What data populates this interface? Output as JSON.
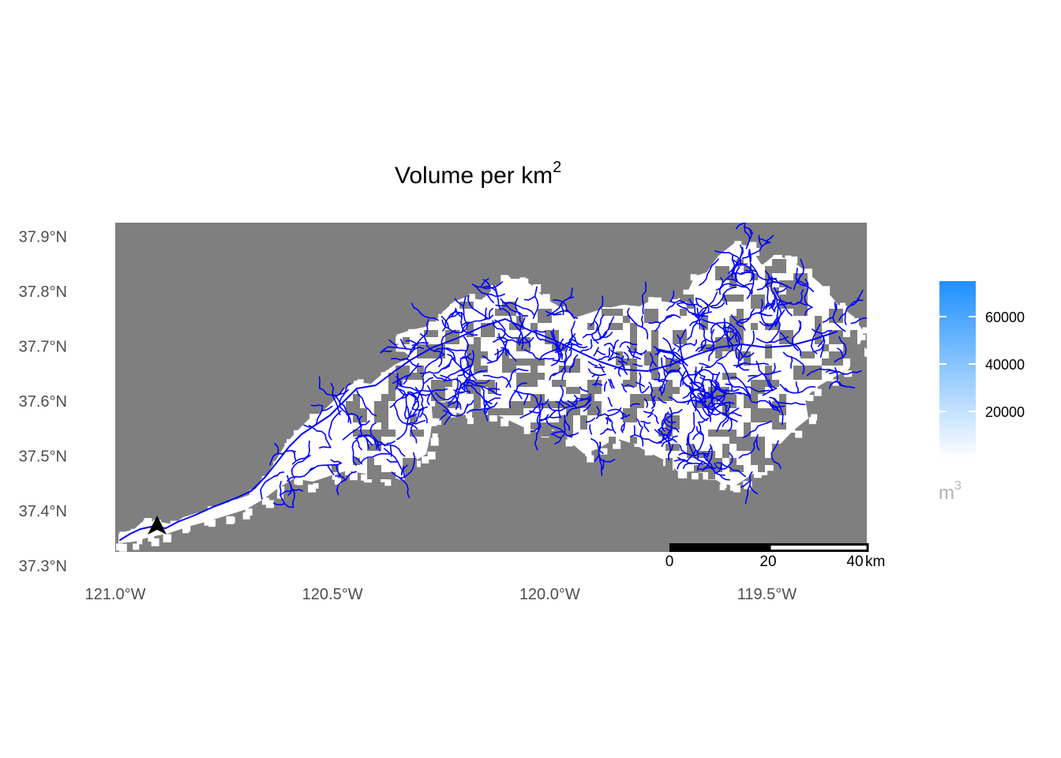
{
  "title": {
    "main": "Volume per km",
    "superscript": "2"
  },
  "colors": {
    "background": "#7f7f7f",
    "watershed": "#ffffff",
    "streams": "#0000ff",
    "legend_low": "#ffffff",
    "legend_high": "#1e90ff",
    "north_arrow": "#000000"
  },
  "map": {
    "lon_range": [
      -121.0,
      -119.27
    ],
    "lat_range": [
      37.325,
      37.925
    ]
  },
  "axes": {
    "y_ticks": [
      {
        "value": 37.9,
        "label": "37.9°N"
      },
      {
        "value": 37.8,
        "label": "37.8°N"
      },
      {
        "value": 37.7,
        "label": "37.7°N"
      },
      {
        "value": 37.6,
        "label": "37.6°N"
      },
      {
        "value": 37.5,
        "label": "37.5°N"
      },
      {
        "value": 37.4,
        "label": "37.4°N"
      },
      {
        "value": 37.3,
        "label": "37.3°N"
      }
    ],
    "x_ticks": [
      {
        "value": -121.0,
        "label": "121.0°W"
      },
      {
        "value": -120.5,
        "label": "120.5°W"
      },
      {
        "value": -120.0,
        "label": "120.0°W"
      },
      {
        "value": -119.5,
        "label": "119.5°W"
      }
    ]
  },
  "legend": {
    "title": "m",
    "title_superscript": "3",
    "range": [
      0,
      75000
    ],
    "ticks": [
      {
        "value": 60000,
        "label": "60000"
      },
      {
        "value": 40000,
        "label": "40000"
      },
      {
        "value": 20000,
        "label": "20000"
      }
    ]
  },
  "scale_bar": {
    "labels": [
      "0",
      "20",
      "40"
    ],
    "unit": "km"
  },
  "north_arrow": {
    "icon": "north-arrow-icon"
  },
  "chart_data": {
    "type": "heatmap",
    "title": "Volume per km²",
    "xlabel": "",
    "ylabel": "",
    "xlim": [
      -121.0,
      -119.27
    ],
    "ylim": [
      37.325,
      37.925
    ],
    "legend": "right",
    "grid": false,
    "colorbar": {
      "min": 0,
      "max": 75000,
      "unit": "m³"
    }
  }
}
